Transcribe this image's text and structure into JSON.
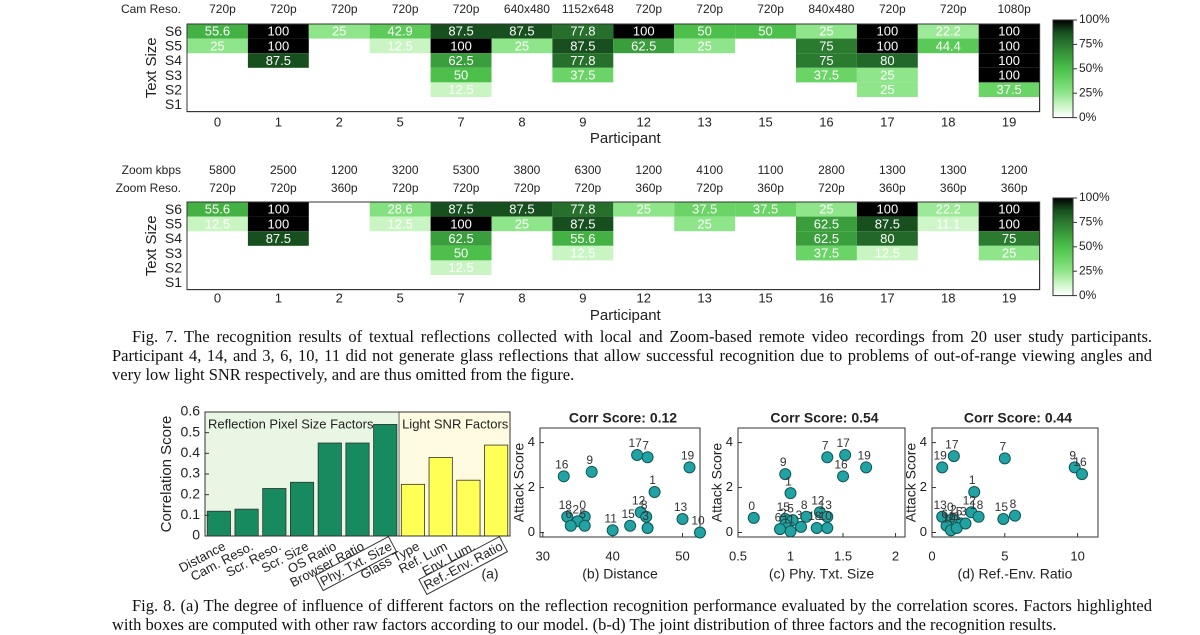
{
  "chart_data": [
    {
      "type": "heatmap",
      "xlabel": "Participant",
      "ylabel": "Text Size",
      "header_rows": [
        {
          "label": "Cam Reso.",
          "values": [
            "720p",
            "720p",
            "720p",
            "720p",
            "720p",
            "640x480",
            "1152x648",
            "720p",
            "720p",
            "720p",
            "840x480",
            "720p",
            "720p",
            "1080p"
          ]
        }
      ],
      "rows": [
        "S6",
        "S5",
        "S4",
        "S3",
        "S2",
        "S1"
      ],
      "categories": [
        0,
        1,
        2,
        5,
        7,
        8,
        9,
        12,
        13,
        15,
        16,
        17,
        18,
        19
      ],
      "values": [
        [
          55.6,
          100,
          25,
          42.9,
          87.5,
          87.5,
          77.8,
          100,
          50,
          50,
          25,
          100,
          22.2,
          100
        ],
        [
          25,
          100,
          null,
          12.5,
          100,
          25,
          87.5,
          62.5,
          25,
          null,
          75,
          100,
          44.4,
          100
        ],
        [
          null,
          87.5,
          null,
          null,
          62.5,
          null,
          77.8,
          null,
          null,
          null,
          75,
          80,
          null,
          100
        ],
        [
          null,
          null,
          null,
          null,
          50,
          null,
          37.5,
          null,
          null,
          null,
          37.5,
          25,
          null,
          100
        ],
        [
          null,
          null,
          null,
          null,
          12.5,
          null,
          null,
          null,
          null,
          null,
          null,
          25,
          null,
          37.5
        ],
        [
          null,
          null,
          null,
          null,
          null,
          null,
          null,
          null,
          null,
          null,
          null,
          null,
          null,
          null
        ]
      ],
      "clim": [
        0,
        100
      ],
      "colorbar_ticks": [
        {
          "value": 100,
          "label": "100%"
        },
        {
          "value": 75,
          "label": "75%"
        },
        {
          "value": 50,
          "label": "50%"
        },
        {
          "value": 25,
          "label": "25%"
        },
        {
          "value": 0,
          "label": "0%"
        }
      ],
      "colormap": [
        "#ffffff",
        "#c9f5c2",
        "#8fe68a",
        "#6ad466",
        "#4cc04b",
        "#3a9e3c",
        "#2a7a30",
        "#174f1e",
        "#000000"
      ]
    },
    {
      "type": "heatmap",
      "xlabel": "Participant",
      "ylabel": "Text Size",
      "header_rows": [
        {
          "label": "Zoom kbps",
          "values": [
            5800,
            2500,
            1200,
            3200,
            5300,
            3800,
            6300,
            1200,
            4100,
            1100,
            2800,
            1300,
            1300,
            1200
          ]
        },
        {
          "label": "Zoom Reso.",
          "values": [
            "720p",
            "720p",
            "360p",
            "720p",
            "720p",
            "720p",
            "720p",
            "360p",
            "720p",
            "360p",
            "720p",
            "360p",
            "360p",
            "360p"
          ]
        }
      ],
      "rows": [
        "S6",
        "S5",
        "S4",
        "S3",
        "S2",
        "S1"
      ],
      "categories": [
        0,
        1,
        2,
        5,
        7,
        8,
        9,
        12,
        13,
        15,
        16,
        17,
        18,
        19
      ],
      "values": [
        [
          55.6,
          100,
          null,
          28.6,
          87.5,
          87.5,
          77.8,
          25,
          37.5,
          37.5,
          25,
          100,
          22.2,
          100
        ],
        [
          12.5,
          100,
          null,
          12.5,
          100,
          25,
          87.5,
          null,
          25,
          null,
          62.5,
          87.5,
          11.1,
          100
        ],
        [
          null,
          87.5,
          null,
          null,
          62.5,
          null,
          55.6,
          null,
          null,
          null,
          62.5,
          80,
          null,
          75
        ],
        [
          null,
          null,
          null,
          null,
          50,
          null,
          12.5,
          null,
          null,
          null,
          37.5,
          12.5,
          null,
          25
        ],
        [
          null,
          null,
          null,
          null,
          12.5,
          null,
          null,
          null,
          null,
          null,
          null,
          null,
          null,
          null
        ],
        [
          null,
          null,
          null,
          null,
          null,
          null,
          null,
          null,
          null,
          null,
          null,
          null,
          null,
          null
        ]
      ],
      "clim": [
        0,
        100
      ],
      "colorbar_ticks": [
        {
          "value": 100,
          "label": "100%"
        },
        {
          "value": 75,
          "label": "75%"
        },
        {
          "value": 50,
          "label": "50%"
        },
        {
          "value": 25,
          "label": "25%"
        },
        {
          "value": 0,
          "label": "0%"
        }
      ],
      "colormap": [
        "#ffffff",
        "#c9f5c2",
        "#8fe68a",
        "#6ad466",
        "#4cc04b",
        "#3a9e3c",
        "#2a7a30",
        "#174f1e",
        "#000000"
      ]
    },
    {
      "type": "bar",
      "ylabel": "Correlation Score",
      "sublabel": "(a)",
      "ylim": [
        0,
        0.6
      ],
      "yticks": [
        0,
        0.1,
        0.2,
        0.3,
        0.4,
        0.5,
        0.6
      ],
      "groups": [
        {
          "label": "Reflection Pixel Size Factors",
          "color": "#178a5f",
          "box_color": "#e9f6e4",
          "categories": [
            "Distance",
            "Cam. Reso.",
            "Scr. Reso.",
            "Scr. Size",
            "OS Ratio",
            "Browser Ratio",
            "Phy. Txt. Size"
          ],
          "values": [
            0.12,
            0.13,
            0.23,
            0.26,
            0.45,
            0.45,
            0.54
          ],
          "boxed": [
            false,
            false,
            false,
            false,
            false,
            false,
            true
          ]
        },
        {
          "label": "Light SNR Factors",
          "color": "#ffff55",
          "box_color": "#fffbe0",
          "categories": [
            "Glass Type",
            "Ref. Lum",
            "Env. Lum.",
            "Ref.-Env. Ratio"
          ],
          "values": [
            0.25,
            0.38,
            0.27,
            0.44
          ],
          "boxed": [
            false,
            false,
            false,
            true
          ]
        }
      ]
    },
    {
      "type": "scatter",
      "title": "Corr Score: 0.12",
      "xlabel": "(b) Distance",
      "ylabel": "Attack Score",
      "color": "#22a3a3",
      "xlim": [
        29.6,
        52.5
      ],
      "ylim": [
        -0.2,
        4.65
      ],
      "xticks": [
        30,
        40,
        50
      ],
      "yticks": [
        0,
        2,
        4
      ],
      "labels": [
        "16",
        "9",
        "17",
        "7",
        "19",
        "1",
        "12",
        "8",
        "18",
        "0",
        "2",
        "6",
        "5",
        "11",
        "15",
        "3",
        "13",
        "10"
      ],
      "x": [
        33,
        37,
        43.5,
        45,
        51,
        46,
        44,
        44.8,
        33.5,
        36,
        35,
        34,
        36,
        40,
        42.5,
        45,
        50,
        52.5
      ],
      "y": [
        2.5,
        2.7,
        3.45,
        3.35,
        2.9,
        1.8,
        0.9,
        0.7,
        0.7,
        0.7,
        0.5,
        0.3,
        0.3,
        0.1,
        0.3,
        0.2,
        0.6,
        0
      ]
    },
    {
      "type": "scatter",
      "title": "Corr Score: 0.54",
      "xlabel": "(c) Phy. Txt. Size",
      "ylabel": "Attack Score",
      "color": "#22a3a3",
      "xlim": [
        0.5,
        2.09
      ],
      "ylim": [
        -0.2,
        4.65
      ],
      "xticks": [
        0.5,
        1,
        1.5,
        2
      ],
      "yticks": [
        0,
        2,
        4
      ],
      "labels": [
        "0",
        "9",
        "1",
        "7",
        "17",
        "16",
        "19",
        "12",
        "13",
        "8",
        "15",
        "5",
        "2",
        "6",
        "11",
        "3",
        "18",
        "10"
      ],
      "x": [
        0.65,
        0.95,
        1.0,
        1.35,
        1.52,
        1.5,
        1.72,
        1.28,
        1.35,
        1.15,
        0.95,
        1.02,
        0.95,
        0.9,
        1.0,
        1.1,
        1.25,
        1.35
      ],
      "y": [
        0.65,
        2.6,
        1.75,
        3.35,
        3.45,
        2.5,
        2.9,
        0.9,
        0.7,
        0.7,
        0.6,
        0.55,
        0.35,
        0.15,
        0.05,
        0.25,
        0.2,
        0.2
      ]
    },
    {
      "type": "scatter",
      "title": "Corr Score: 0.44",
      "xlabel": "(d) Ref.-Env. Ratio",
      "ylabel": "Attack Score",
      "color": "#22a3a3",
      "xlim": [
        0,
        11.4
      ],
      "ylim": [
        -0.2,
        4.65
      ],
      "xticks": [
        0,
        5,
        10
      ],
      "yticks": [
        0,
        2,
        4
      ],
      "labels": [
        "19",
        "17",
        "7",
        "1",
        "12",
        "18",
        "13",
        "0",
        "2",
        "6",
        "10",
        "5",
        "11",
        "3",
        "15",
        "8",
        "9",
        "16"
      ],
      "x": [
        0.7,
        1.5,
        5.0,
        2.9,
        2.7,
        3.2,
        0.7,
        1.4,
        1.6,
        1.0,
        1.3,
        2.0,
        1.7,
        2.3,
        4.9,
        5.7,
        9.8,
        10.3
      ],
      "y": [
        2.9,
        3.4,
        3.3,
        1.8,
        0.9,
        0.7,
        0.7,
        0.6,
        0.5,
        0.3,
        0.1,
        0.4,
        0.2,
        0.4,
        0.6,
        0.75,
        2.9,
        2.6
      ]
    }
  ],
  "captions": {
    "fig7": "Fig. 7.  The recognition results of textual reflections collected with local and Zoom-based remote video recordings from 20 user study participants. Participant 4, 14, and 3, 6, 10, 11 did not generate glass reflections that allow successful recognition due to problems of out-of-range viewing angles and very low light SNR respectively, and are thus omitted from the figure.",
    "fig8": "Fig. 8.  (a) The degree of influence of different factors on the reflection recognition performance evaluated by the correlation scores. Factors highlighted with boxes are computed with other raw factors according to our model. (b-d) The joint distribution of three factors and the recognition results."
  }
}
